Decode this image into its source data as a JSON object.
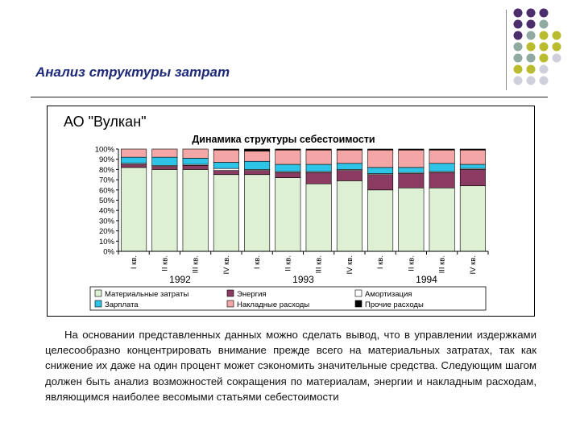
{
  "slide": {
    "title": "Анализ структуры затрат",
    "body_text": "На основании представленных данных можно сделать вывод, что в управлении издержками целесообразно концентрировать внимание прежде всего на материальных затратах, так как снижение их даже на один процент может сэкономить значительные средства. Следующим шагом должен быть анализ возможностей сокращения по материалам, энергии и накладным расходам, являющимся наиболее весомыми статьями себестоимости"
  },
  "decor": {
    "dot_colors": [
      "#4b2d6b",
      "#8faaa0",
      "#b9bc2e",
      "#d0d0dc"
    ]
  },
  "chart_data": {
    "type": "bar",
    "stacked": true,
    "company": "АО \"Вулкан\"",
    "title": "Динамика структуры себестоимости",
    "categories": [
      "I кв.",
      "II кв.",
      "III кв.",
      "IV кв.",
      "I кв.",
      "II кв.",
      "III кв.",
      "IV кв.",
      "I кв.",
      "II кв.",
      "III кв.",
      "IV кв."
    ],
    "groups": [
      {
        "label": "1992",
        "start": 0,
        "end": 3
      },
      {
        "label": "1993",
        "start": 4,
        "end": 7
      },
      {
        "label": "1994",
        "start": 8,
        "end": 11
      }
    ],
    "y_ticks": [
      "0%",
      "10%",
      "20%",
      "30%",
      "40%",
      "50%",
      "60%",
      "70%",
      "80%",
      "90%",
      "100%"
    ],
    "ylim": [
      0,
      100
    ],
    "grid": false,
    "legend_position": "bottom",
    "series": [
      {
        "name": "Материальные затраты",
        "color": "#ddf0d4",
        "values": [
          82,
          80,
          80,
          75,
          75,
          72,
          66,
          69,
          60,
          62,
          62,
          64
        ]
      },
      {
        "name": "Энергия",
        "color": "#8b3a62",
        "values": [
          3,
          3,
          4,
          4,
          4,
          5,
          11,
          10,
          15,
          14,
          15,
          16
        ]
      },
      {
        "name": "Амортизация",
        "color": "#ffffff",
        "values": [
          1,
          1,
          1,
          2,
          1,
          1,
          1,
          1,
          1,
          1,
          1,
          1
        ]
      },
      {
        "name": "Зарплата",
        "color": "#2ec4e8",
        "values": [
          6,
          8,
          6,
          6,
          8,
          7,
          7,
          6,
          6,
          5,
          8,
          4
        ]
      },
      {
        "name": "Накладные расходы",
        "color": "#f4a6a6",
        "values": [
          8,
          8,
          9,
          12,
          10,
          14,
          14,
          13,
          17,
          17,
          13,
          14
        ]
      },
      {
        "name": "Прочие расходы",
        "color": "#000000",
        "values": [
          0,
          0,
          0,
          1,
          2,
          1,
          1,
          1,
          1,
          1,
          1,
          1
        ]
      }
    ]
  }
}
